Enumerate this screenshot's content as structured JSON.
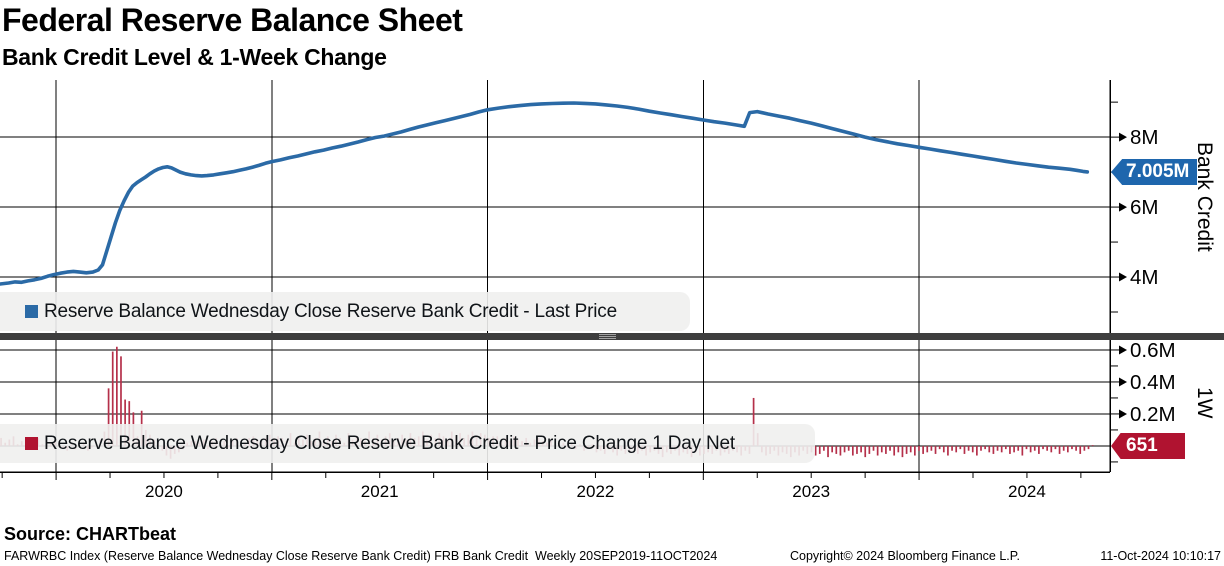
{
  "header": {
    "title": "Federal Reserve Balance Sheet",
    "subtitle": "Bank Credit Level & 1-Week Change"
  },
  "source": "Source: CHARTbeat",
  "meta": {
    "left": "FARWRBC Index (Reserve Balance Wednesday Close Reserve Bank Credit) FRB Bank Credit  Weekly 20SEP2019-11OCT2024",
    "center": "Copyright© 2024 Bloomberg Finance L.P.",
    "right": "11-Oct-2024 10:10:17"
  },
  "colors": {
    "line_blue": "#2b6aa6",
    "bar_red": "#b5304a",
    "badge_blue": "#1e66ad",
    "badge_red": "#b01330",
    "grid": "#000000",
    "separator": "#3e3e3e",
    "separator_grip": "#a2a2a2",
    "legend_bg": "#f0f0ee"
  },
  "chart_data": [
    {
      "type": "line",
      "name": "Reserve Balance Wednesday Close Reserve Bank Credit",
      "legend": "Reserve Balance Wednesday Close Reserve Bank Credit - Last Price",
      "axis_title": "Bank Credit",
      "last_price_label": "7.005M",
      "last_value": 7.005,
      "units": "M",
      "x_range": [
        2019.74,
        2024.885
      ],
      "year_ticks": [
        2020,
        2021,
        2022,
        2023,
        2024
      ],
      "year_tick_labels": [
        "2020",
        "2021",
        "2022",
        "2023",
        "2024"
      ],
      "ylim": [
        2.4,
        9.69
      ],
      "y_major_ticks": [
        {
          "v": 8,
          "label": "8M"
        },
        {
          "v": 6,
          "label": "6M"
        },
        {
          "v": 4,
          "label": "4M"
        }
      ],
      "y_minor_ticks": [
        9,
        7,
        5,
        3
      ],
      "points": [
        [
          2019.74,
          3.8
        ],
        [
          2019.78,
          3.83
        ],
        [
          2019.81,
          3.86
        ],
        [
          2019.84,
          3.85
        ],
        [
          2019.87,
          3.89
        ],
        [
          2019.9,
          3.92
        ],
        [
          2019.93,
          3.96
        ],
        [
          2019.96,
          4.02
        ],
        [
          2019.99,
          4.07
        ],
        [
          2020.02,
          4.11
        ],
        [
          2020.05,
          4.14
        ],
        [
          2020.08,
          4.16
        ],
        [
          2020.11,
          4.14
        ],
        [
          2020.14,
          4.12
        ],
        [
          2020.17,
          4.14
        ],
        [
          2020.195,
          4.2
        ],
        [
          2020.215,
          4.35
        ],
        [
          2020.235,
          4.75
        ],
        [
          2020.255,
          5.15
        ],
        [
          2020.275,
          5.55
        ],
        [
          2020.295,
          5.9
        ],
        [
          2020.315,
          6.18
        ],
        [
          2020.335,
          6.42
        ],
        [
          2020.355,
          6.6
        ],
        [
          2020.375,
          6.7
        ],
        [
          2020.395,
          6.78
        ],
        [
          2020.415,
          6.86
        ],
        [
          2020.435,
          6.95
        ],
        [
          2020.455,
          7.03
        ],
        [
          2020.475,
          7.09
        ],
        [
          2020.495,
          7.13
        ],
        [
          2020.515,
          7.15
        ],
        [
          2020.535,
          7.12
        ],
        [
          2020.555,
          7.06
        ],
        [
          2020.575,
          7.0
        ],
        [
          2020.6,
          6.95
        ],
        [
          2020.625,
          6.92
        ],
        [
          2020.65,
          6.9
        ],
        [
          2020.675,
          6.89
        ],
        [
          2020.7,
          6.9
        ],
        [
          2020.73,
          6.92
        ],
        [
          2020.76,
          6.95
        ],
        [
          2020.79,
          6.98
        ],
        [
          2020.82,
          7.01
        ],
        [
          2020.85,
          7.05
        ],
        [
          2020.88,
          7.09
        ],
        [
          2020.91,
          7.14
        ],
        [
          2020.94,
          7.19
        ],
        [
          2020.97,
          7.25
        ],
        [
          2021.0,
          7.3
        ],
        [
          2021.04,
          7.35
        ],
        [
          2021.08,
          7.41
        ],
        [
          2021.12,
          7.46
        ],
        [
          2021.16,
          7.52
        ],
        [
          2021.2,
          7.58
        ],
        [
          2021.24,
          7.63
        ],
        [
          2021.28,
          7.69
        ],
        [
          2021.32,
          7.74
        ],
        [
          2021.36,
          7.8
        ],
        [
          2021.4,
          7.86
        ],
        [
          2021.44,
          7.93
        ],
        [
          2021.48,
          7.99
        ],
        [
          2021.52,
          8.03
        ],
        [
          2021.56,
          8.09
        ],
        [
          2021.6,
          8.15
        ],
        [
          2021.64,
          8.22
        ],
        [
          2021.68,
          8.29
        ],
        [
          2021.72,
          8.35
        ],
        [
          2021.76,
          8.41
        ],
        [
          2021.8,
          8.47
        ],
        [
          2021.84,
          8.53
        ],
        [
          2021.88,
          8.59
        ],
        [
          2021.92,
          8.65
        ],
        [
          2021.96,
          8.72
        ],
        [
          2022.0,
          8.78
        ],
        [
          2022.05,
          8.83
        ],
        [
          2022.1,
          8.87
        ],
        [
          2022.15,
          8.9
        ],
        [
          2022.2,
          8.93
        ],
        [
          2022.25,
          8.95
        ],
        [
          2022.3,
          8.96
        ],
        [
          2022.35,
          8.97
        ],
        [
          2022.4,
          8.975
        ],
        [
          2022.45,
          8.965
        ],
        [
          2022.5,
          8.95
        ],
        [
          2022.55,
          8.92
        ],
        [
          2022.6,
          8.89
        ],
        [
          2022.65,
          8.85
        ],
        [
          2022.7,
          8.8
        ],
        [
          2022.75,
          8.74
        ],
        [
          2022.8,
          8.69
        ],
        [
          2022.85,
          8.64
        ],
        [
          2022.9,
          8.59
        ],
        [
          2022.95,
          8.54
        ],
        [
          2023.0,
          8.49
        ],
        [
          2023.05,
          8.44
        ],
        [
          2023.1,
          8.4
        ],
        [
          2023.15,
          8.35
        ],
        [
          2023.19,
          8.31
        ],
        [
          2023.215,
          8.7
        ],
        [
          2023.25,
          8.73
        ],
        [
          2023.3,
          8.66
        ],
        [
          2023.35,
          8.6
        ],
        [
          2023.4,
          8.54
        ],
        [
          2023.45,
          8.47
        ],
        [
          2023.5,
          8.4
        ],
        [
          2023.55,
          8.32
        ],
        [
          2023.6,
          8.24
        ],
        [
          2023.65,
          8.16
        ],
        [
          2023.7,
          8.08
        ],
        [
          2023.75,
          8.0
        ],
        [
          2023.8,
          7.93
        ],
        [
          2023.85,
          7.87
        ],
        [
          2023.9,
          7.81
        ],
        [
          2023.95,
          7.76
        ],
        [
          2024.0,
          7.71
        ],
        [
          2024.05,
          7.66
        ],
        [
          2024.1,
          7.61
        ],
        [
          2024.15,
          7.56
        ],
        [
          2024.2,
          7.51
        ],
        [
          2024.25,
          7.46
        ],
        [
          2024.3,
          7.41
        ],
        [
          2024.35,
          7.36
        ],
        [
          2024.4,
          7.31
        ],
        [
          2024.45,
          7.26
        ],
        [
          2024.5,
          7.22
        ],
        [
          2024.55,
          7.18
        ],
        [
          2024.6,
          7.14
        ],
        [
          2024.65,
          7.11
        ],
        [
          2024.7,
          7.08
        ],
        [
          2024.73,
          7.05
        ],
        [
          2024.76,
          7.02
        ],
        [
          2024.78,
          7.005
        ]
      ]
    },
    {
      "type": "bar",
      "name": "Reserve Balance Wednesday Close Reserve Bank Credit weekly net change",
      "legend": "Reserve Balance Wednesday Close Reserve Bank Credit - Price Change 1 Day Net",
      "axis_title": "1W",
      "last_price_label": "651",
      "last_value": 0.000651,
      "units": "M",
      "x_range": [
        2019.74,
        2024.885
      ],
      "ylim": [
        -0.163,
        0.656
      ],
      "y_major_ticks": [
        {
          "v": 0.6,
          "label": "0.6M"
        },
        {
          "v": 0.4,
          "label": "0.4M"
        },
        {
          "v": 0.2,
          "label": "0.2M"
        }
      ],
      "y_minor_ticks": [
        0.5,
        0.3,
        0.1,
        -0.1
      ],
      "bar_start": 2019.745,
      "bar_step": 0.019165,
      "values": [
        0.05,
        0.02,
        0.04,
        0.06,
        0.01,
        0.03,
        -0.02,
        0.04,
        0.02,
        0.05,
        0.01,
        0.03,
        0.02,
        0.04,
        0.01,
        -0.02,
        -0.03,
        0.01,
        -0.02,
        -0.01,
        0.02,
        -0.03,
        -0.01,
        0.01,
        0.04,
        0.09,
        0.36,
        0.59,
        0.62,
        0.56,
        0.29,
        0.28,
        0.21,
        0.06,
        0.22,
        0.1,
        0.07,
        0.04,
        0.02,
        -0.03,
        -0.06,
        -0.08,
        -0.05,
        -0.04,
        -0.02,
        0.02,
        0.03,
        0.03,
        0.02,
        0.04,
        -0.02,
        0.03,
        0.05,
        0.02,
        0.03,
        -0.01,
        0.04,
        0.05,
        0.03,
        0.02,
        0.05,
        0.06,
        0.04,
        0.03,
        0.05,
        0.07,
        0.05,
        0.06,
        0.05,
        0.03,
        0.08,
        0.02,
        0.06,
        0.04,
        0.07,
        0.03,
        0.05,
        0.09,
        0.04,
        0.06,
        0.03,
        0.07,
        0.05,
        0.02,
        0.08,
        0.04,
        0.06,
        0.05,
        0.03,
        0.09,
        0.05,
        0.07,
        0.04,
        0.06,
        0.08,
        0.03,
        0.05,
        0.07,
        0.04,
        0.08,
        0.05,
        0.06,
        0.09,
        0.04,
        0.07,
        0.05,
        0.08,
        0.06,
        0.04,
        0.09,
        0.06,
        0.08,
        0.05,
        0.07,
        0.09,
        0.06,
        0.08,
        0.07,
        0.05,
        0.06,
        0.06,
        0.04,
        0.05,
        0.03,
        0.06,
        0.04,
        0.03,
        0.05,
        0.02,
        0.04,
        0.05,
        0.03,
        0.02,
        0.04,
        0.01,
        0.03,
        0.02,
        -0.01,
        0.02,
        -0.02,
        0.01,
        -0.03,
        -0.02,
        0.01,
        -0.04,
        -0.03,
        -0.05,
        -0.02,
        -0.04,
        -0.06,
        -0.03,
        -0.05,
        -0.04,
        -0.02,
        -0.05,
        -0.03,
        -0.06,
        -0.04,
        -0.03,
        -0.05,
        -0.07,
        -0.04,
        -0.05,
        -0.03,
        -0.06,
        -0.04,
        -0.05,
        -0.07,
        -0.04,
        -0.06,
        -0.05,
        -0.04,
        -0.05,
        -0.03,
        -0.06,
        -0.04,
        -0.05,
        -0.03,
        -0.04,
        -0.06,
        -0.03,
        -0.05,
        0.3,
        0.08,
        -0.04,
        -0.06,
        -0.05,
        -0.03,
        -0.06,
        -0.04,
        -0.05,
        -0.07,
        -0.04,
        -0.06,
        -0.03,
        -0.05,
        -0.04,
        -0.06,
        -0.05,
        -0.03,
        -0.07,
        -0.04,
        -0.05,
        -0.06,
        -0.04,
        -0.03,
        -0.06,
        -0.05,
        -0.04,
        -0.07,
        -0.05,
        -0.03,
        -0.06,
        -0.04,
        -0.05,
        -0.03,
        -0.06,
        -0.04,
        -0.07,
        -0.05,
        -0.04,
        -0.06,
        -0.03,
        -0.05,
        -0.04,
        -0.03,
        -0.05,
        -0.02,
        -0.04,
        -0.06,
        -0.03,
        -0.04,
        -0.02,
        -0.05,
        -0.03,
        -0.04,
        -0.06,
        -0.03,
        -0.02,
        -0.04,
        -0.05,
        -0.03,
        -0.04,
        -0.02,
        -0.05,
        -0.04,
        -0.03,
        -0.06,
        -0.02,
        -0.04,
        -0.03,
        -0.05,
        -0.02,
        -0.03,
        -0.04,
        -0.02,
        -0.05,
        -0.03,
        -0.04,
        -0.02,
        -0.03,
        -0.05,
        -0.03,
        -0.02,
        0.000651
      ]
    }
  ]
}
